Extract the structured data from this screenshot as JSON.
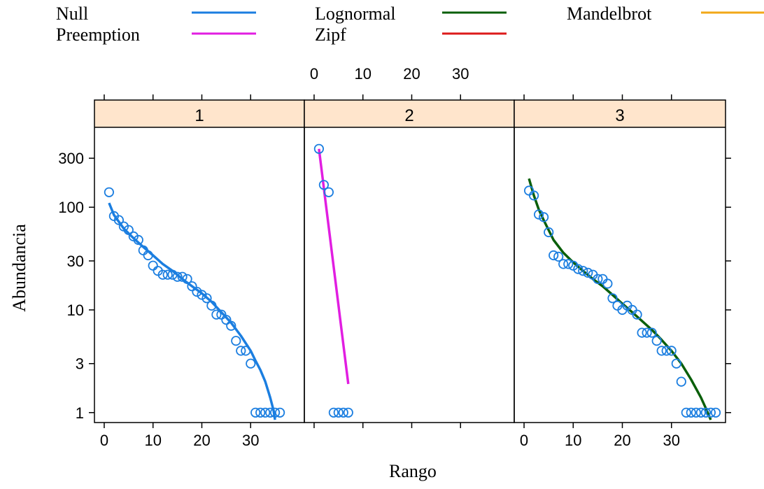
{
  "chart_data": {
    "type": "scatter",
    "xlabel": "Rango",
    "ylabel": "Abundancia",
    "y_scale": "log",
    "ylim": [
      0.8,
      600
    ],
    "y_ticks": [
      1,
      3,
      10,
      30,
      100,
      300
    ],
    "xlim": [
      -2,
      41
    ],
    "x_ticks": [
      0,
      10,
      20,
      30
    ],
    "colors": {
      "strip": "#ffe5cc",
      "points": "#1b7ee0",
      "Null": "#1b7ee0",
      "Preemption": "#e11ee1",
      "Lognormal": "#0a5f0a",
      "Zipf": "#dd1a1a",
      "Mandelbrot": "#f2a818"
    },
    "legend": [
      {
        "name": "Null",
        "color": "#1b7ee0"
      },
      {
        "name": "Preemption",
        "color": "#e11ee1"
      },
      {
        "name": "Lognormal",
        "color": "#0a5f0a"
      },
      {
        "name": "Zipf",
        "color": "#dd1a1a"
      },
      {
        "name": "Mandelbrot",
        "color": "#f2a818"
      }
    ],
    "panels": [
      {
        "label": "1",
        "points": [
          [
            1,
            140
          ],
          [
            2,
            82
          ],
          [
            3,
            75
          ],
          [
            4,
            65
          ],
          [
            5,
            60
          ],
          [
            6,
            52
          ],
          [
            7,
            48
          ],
          [
            8,
            38
          ],
          [
            9,
            34
          ],
          [
            10,
            27
          ],
          [
            11,
            24
          ],
          [
            12,
            22
          ],
          [
            13,
            22
          ],
          [
            14,
            22
          ],
          [
            15,
            21
          ],
          [
            16,
            21
          ],
          [
            17,
            20
          ],
          [
            18,
            17
          ],
          [
            19,
            15
          ],
          [
            20,
            14
          ],
          [
            21,
            13
          ],
          [
            22,
            11
          ],
          [
            23,
            9
          ],
          [
            24,
            9
          ],
          [
            25,
            8
          ],
          [
            26,
            7
          ],
          [
            27,
            5
          ],
          [
            28,
            4
          ],
          [
            29,
            4
          ],
          [
            30,
            3
          ],
          [
            31,
            1
          ],
          [
            32,
            1
          ],
          [
            33,
            1
          ],
          [
            34,
            1
          ],
          [
            35,
            1
          ],
          [
            36,
            1
          ]
        ],
        "fit": {
          "model": "Null",
          "points": [
            [
              1,
              110
            ],
            [
              2,
              84
            ],
            [
              4,
              62
            ],
            [
              6,
              50
            ],
            [
              8,
              41
            ],
            [
              10,
              34
            ],
            [
              12,
              28
            ],
            [
              14,
              24
            ],
            [
              16,
              20
            ],
            [
              18,
              17
            ],
            [
              20,
              14.5
            ],
            [
              22,
              12
            ],
            [
              24,
              9.5
            ],
            [
              26,
              7.5
            ],
            [
              28,
              5.6
            ],
            [
              30,
              4.0
            ],
            [
              31,
              3.2
            ],
            [
              32,
              2.6
            ],
            [
              33,
              2.0
            ],
            [
              34,
              1.4
            ],
            [
              34.7,
              1.05
            ],
            [
              35,
              0.85
            ]
          ]
        }
      },
      {
        "label": "2",
        "points": [
          [
            1,
            370
          ],
          [
            2,
            165
          ],
          [
            3,
            140
          ],
          [
            4,
            1
          ],
          [
            5,
            1
          ],
          [
            6,
            1
          ],
          [
            7,
            1
          ]
        ],
        "fit": {
          "model": "Preemption",
          "points": [
            [
              1,
              370
            ],
            [
              7,
              1.9
            ]
          ]
        }
      },
      {
        "label": "3",
        "points": [
          [
            1,
            145
          ],
          [
            2,
            130
          ],
          [
            3,
            85
          ],
          [
            4,
            80
          ],
          [
            5,
            57
          ],
          [
            6,
            34
          ],
          [
            7,
            33
          ],
          [
            8,
            28
          ],
          [
            9,
            28
          ],
          [
            10,
            27
          ],
          [
            11,
            25
          ],
          [
            12,
            24
          ],
          [
            13,
            23
          ],
          [
            14,
            22
          ],
          [
            15,
            20
          ],
          [
            16,
            20
          ],
          [
            17,
            18
          ],
          [
            18,
            13
          ],
          [
            19,
            11
          ],
          [
            20,
            10
          ],
          [
            21,
            11
          ],
          [
            22,
            10
          ],
          [
            23,
            9
          ],
          [
            24,
            6
          ],
          [
            25,
            6
          ],
          [
            26,
            6
          ],
          [
            27,
            5
          ],
          [
            28,
            4
          ],
          [
            29,
            4
          ],
          [
            30,
            4
          ],
          [
            31,
            3
          ],
          [
            32,
            2
          ],
          [
            33,
            1
          ],
          [
            34,
            1
          ],
          [
            35,
            1
          ],
          [
            36,
            1
          ],
          [
            37,
            1
          ],
          [
            38,
            1
          ],
          [
            39,
            1
          ]
        ],
        "fit": {
          "model": "Lognormal",
          "points": [
            [
              1,
              190
            ],
            [
              2,
              130
            ],
            [
              3,
              95
            ],
            [
              4,
              75
            ],
            [
              6,
              48
            ],
            [
              8,
              36
            ],
            [
              10,
              29
            ],
            [
              12,
              24
            ],
            [
              14,
              20
            ],
            [
              16,
              17
            ],
            [
              18,
              14
            ],
            [
              20,
              11.5
            ],
            [
              22,
              9.5
            ],
            [
              24,
              7.8
            ],
            [
              26,
              6.4
            ],
            [
              28,
              5.1
            ],
            [
              30,
              4.0
            ],
            [
              32,
              3.0
            ],
            [
              34,
              2.1
            ],
            [
              36,
              1.4
            ],
            [
              37,
              1.1
            ],
            [
              38,
              0.85
            ]
          ]
        }
      }
    ]
  }
}
